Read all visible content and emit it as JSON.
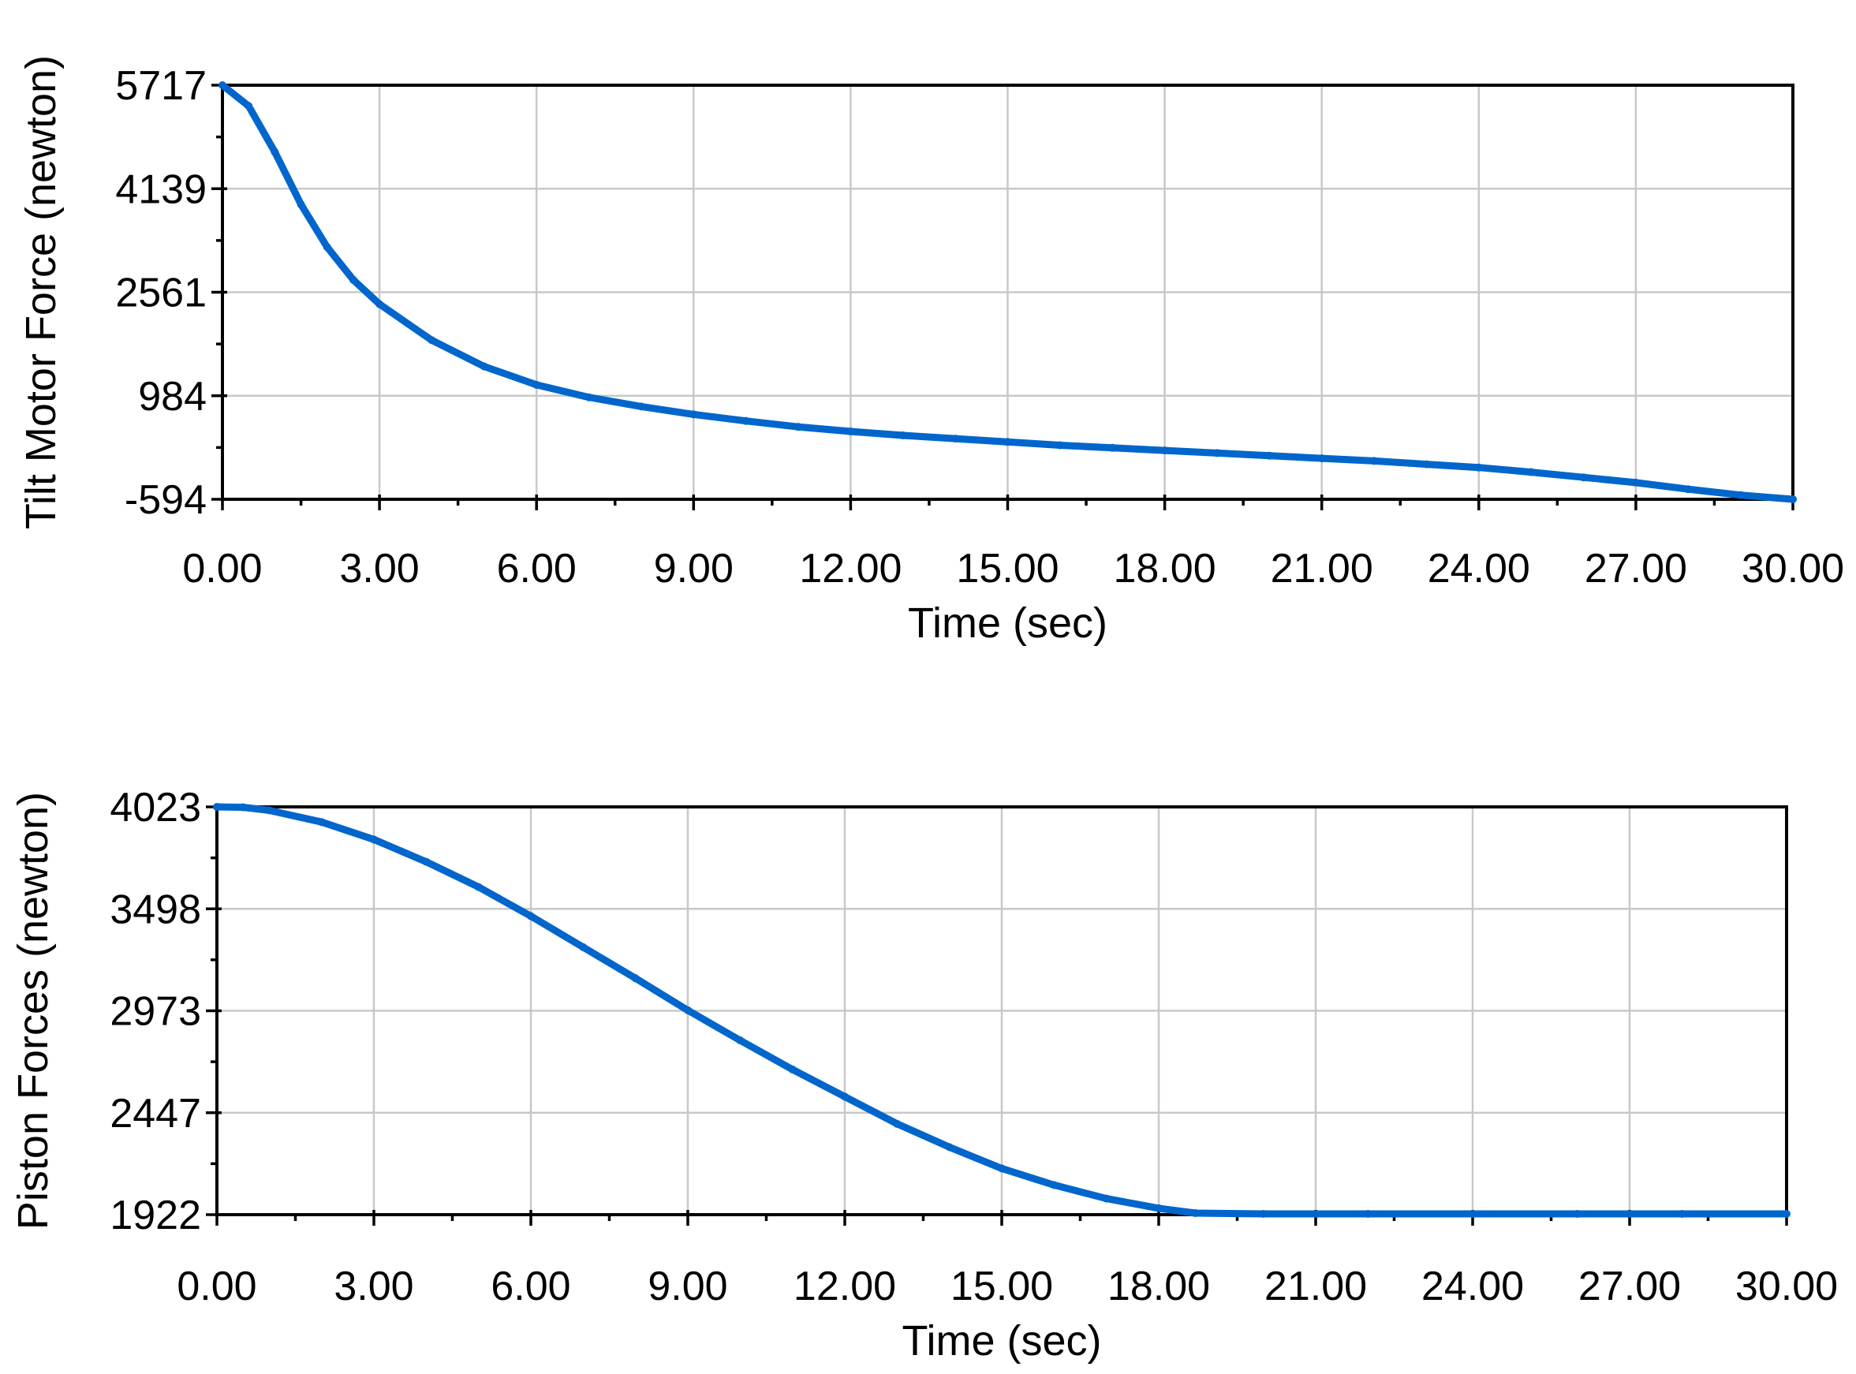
{
  "colors": {
    "series": "#0066cc",
    "grid": "#c8c8c8",
    "axis": "#000000"
  },
  "chart_data": [
    {
      "type": "line",
      "xlabel": "Time (sec)",
      "ylabel": "Tilt Motor Force (newton)",
      "xlim": [
        0,
        30
      ],
      "ylim": [
        -594,
        5717
      ],
      "x_ticks": [
        "0.00",
        "3.00",
        "6.00",
        "9.00",
        "12.00",
        "15.00",
        "18.00",
        "21.00",
        "24.00",
        "27.00",
        "30.00"
      ],
      "y_ticks": [
        "5717",
        "4139",
        "2561",
        "984",
        "-594"
      ],
      "grid": true,
      "series": [
        {
          "x": [
            0,
            0.5,
            1,
            1.5,
            2,
            2.5,
            3,
            4,
            5,
            6,
            7,
            8,
            9,
            10,
            11,
            12,
            13,
            14,
            15,
            16,
            17,
            18,
            19,
            20,
            21,
            22,
            23,
            24,
            25,
            26,
            27,
            28,
            29,
            30
          ],
          "values": [
            5717,
            5400,
            4700,
            3900,
            3250,
            2750,
            2380,
            1830,
            1430,
            1150,
            960,
            820,
            700,
            600,
            510,
            440,
            380,
            330,
            280,
            230,
            190,
            150,
            110,
            70,
            30,
            -10,
            -60,
            -110,
            -180,
            -260,
            -340,
            -440,
            -530,
            -594
          ]
        }
      ]
    },
    {
      "type": "line",
      "xlabel": "Time (sec)",
      "ylabel": "Piston Forces (newton)",
      "xlim": [
        0,
        30
      ],
      "ylim": [
        1922,
        4023
      ],
      "x_ticks": [
        "0.00",
        "3.00",
        "6.00",
        "9.00",
        "12.00",
        "15.00",
        "18.00",
        "21.00",
        "24.00",
        "27.00",
        "30.00"
      ],
      "y_ticks": [
        "4023",
        "3498",
        "2973",
        "2447",
        "1922"
      ],
      "grid": true,
      "series": [
        {
          "x": [
            0,
            0.5,
            1,
            2,
            3,
            4,
            5,
            6,
            7,
            8,
            9,
            10,
            11,
            12,
            13,
            14,
            15,
            16,
            17,
            18,
            18.7,
            20,
            22,
            24,
            26,
            28,
            30
          ],
          "values": [
            4023,
            4021,
            4005,
            3945,
            3855,
            3740,
            3610,
            3460,
            3300,
            3140,
            2975,
            2820,
            2670,
            2530,
            2390,
            2270,
            2160,
            2075,
            2005,
            1955,
            1930,
            1926,
            1926,
            1926,
            1926,
            1926,
            1926
          ]
        }
      ]
    }
  ]
}
